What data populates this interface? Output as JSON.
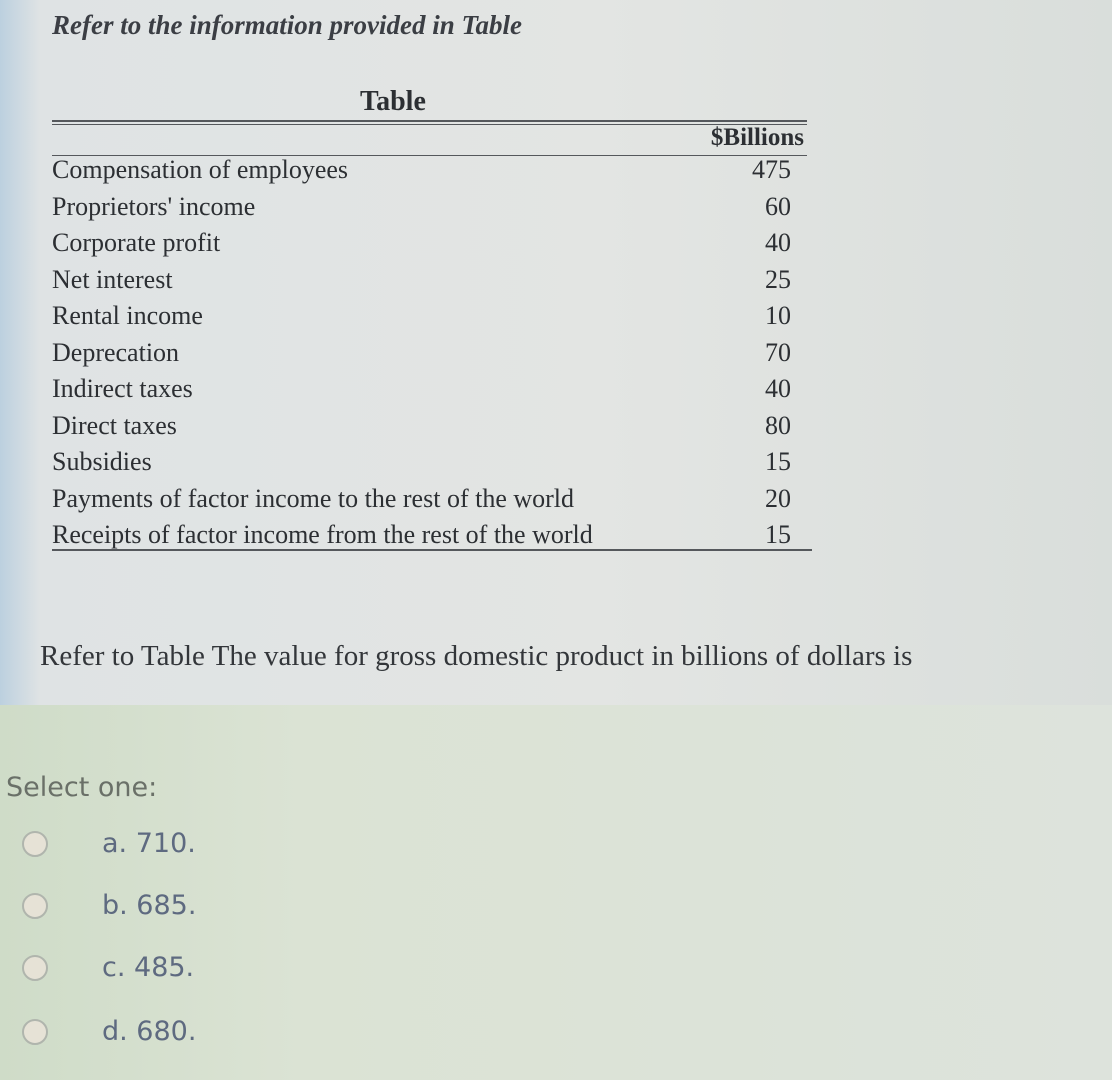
{
  "intro": "Refer to the information provided in Table",
  "table": {
    "title": "Table",
    "header": "$Billions",
    "rows": [
      {
        "label": "Compensation of employees",
        "value": "475"
      },
      {
        "label": "Proprietors' income",
        "value": "60"
      },
      {
        "label": "Corporate profit",
        "value": "40"
      },
      {
        "label": "Net interest",
        "value": "25"
      },
      {
        "label": "Rental income",
        "value": "10"
      },
      {
        "label": "Deprecation",
        "value": "70"
      },
      {
        "label": "Indirect taxes",
        "value": "40"
      },
      {
        "label": "Direct taxes",
        "value": "80"
      },
      {
        "label": "Subsidies",
        "value": "15"
      },
      {
        "label": "Payments of factor income to the rest of the world",
        "value": "20"
      },
      {
        "label": "Receipts of factor income from the rest of the world",
        "value": "15"
      }
    ]
  },
  "question": "Refer to Table The value for gross domestic product in billions of dollars is",
  "select_label": "Select one:",
  "options": [
    {
      "label": "a. 710."
    },
    {
      "label": "b. 685."
    },
    {
      "label": "c. 485."
    },
    {
      "label": "d. 680."
    }
  ]
}
